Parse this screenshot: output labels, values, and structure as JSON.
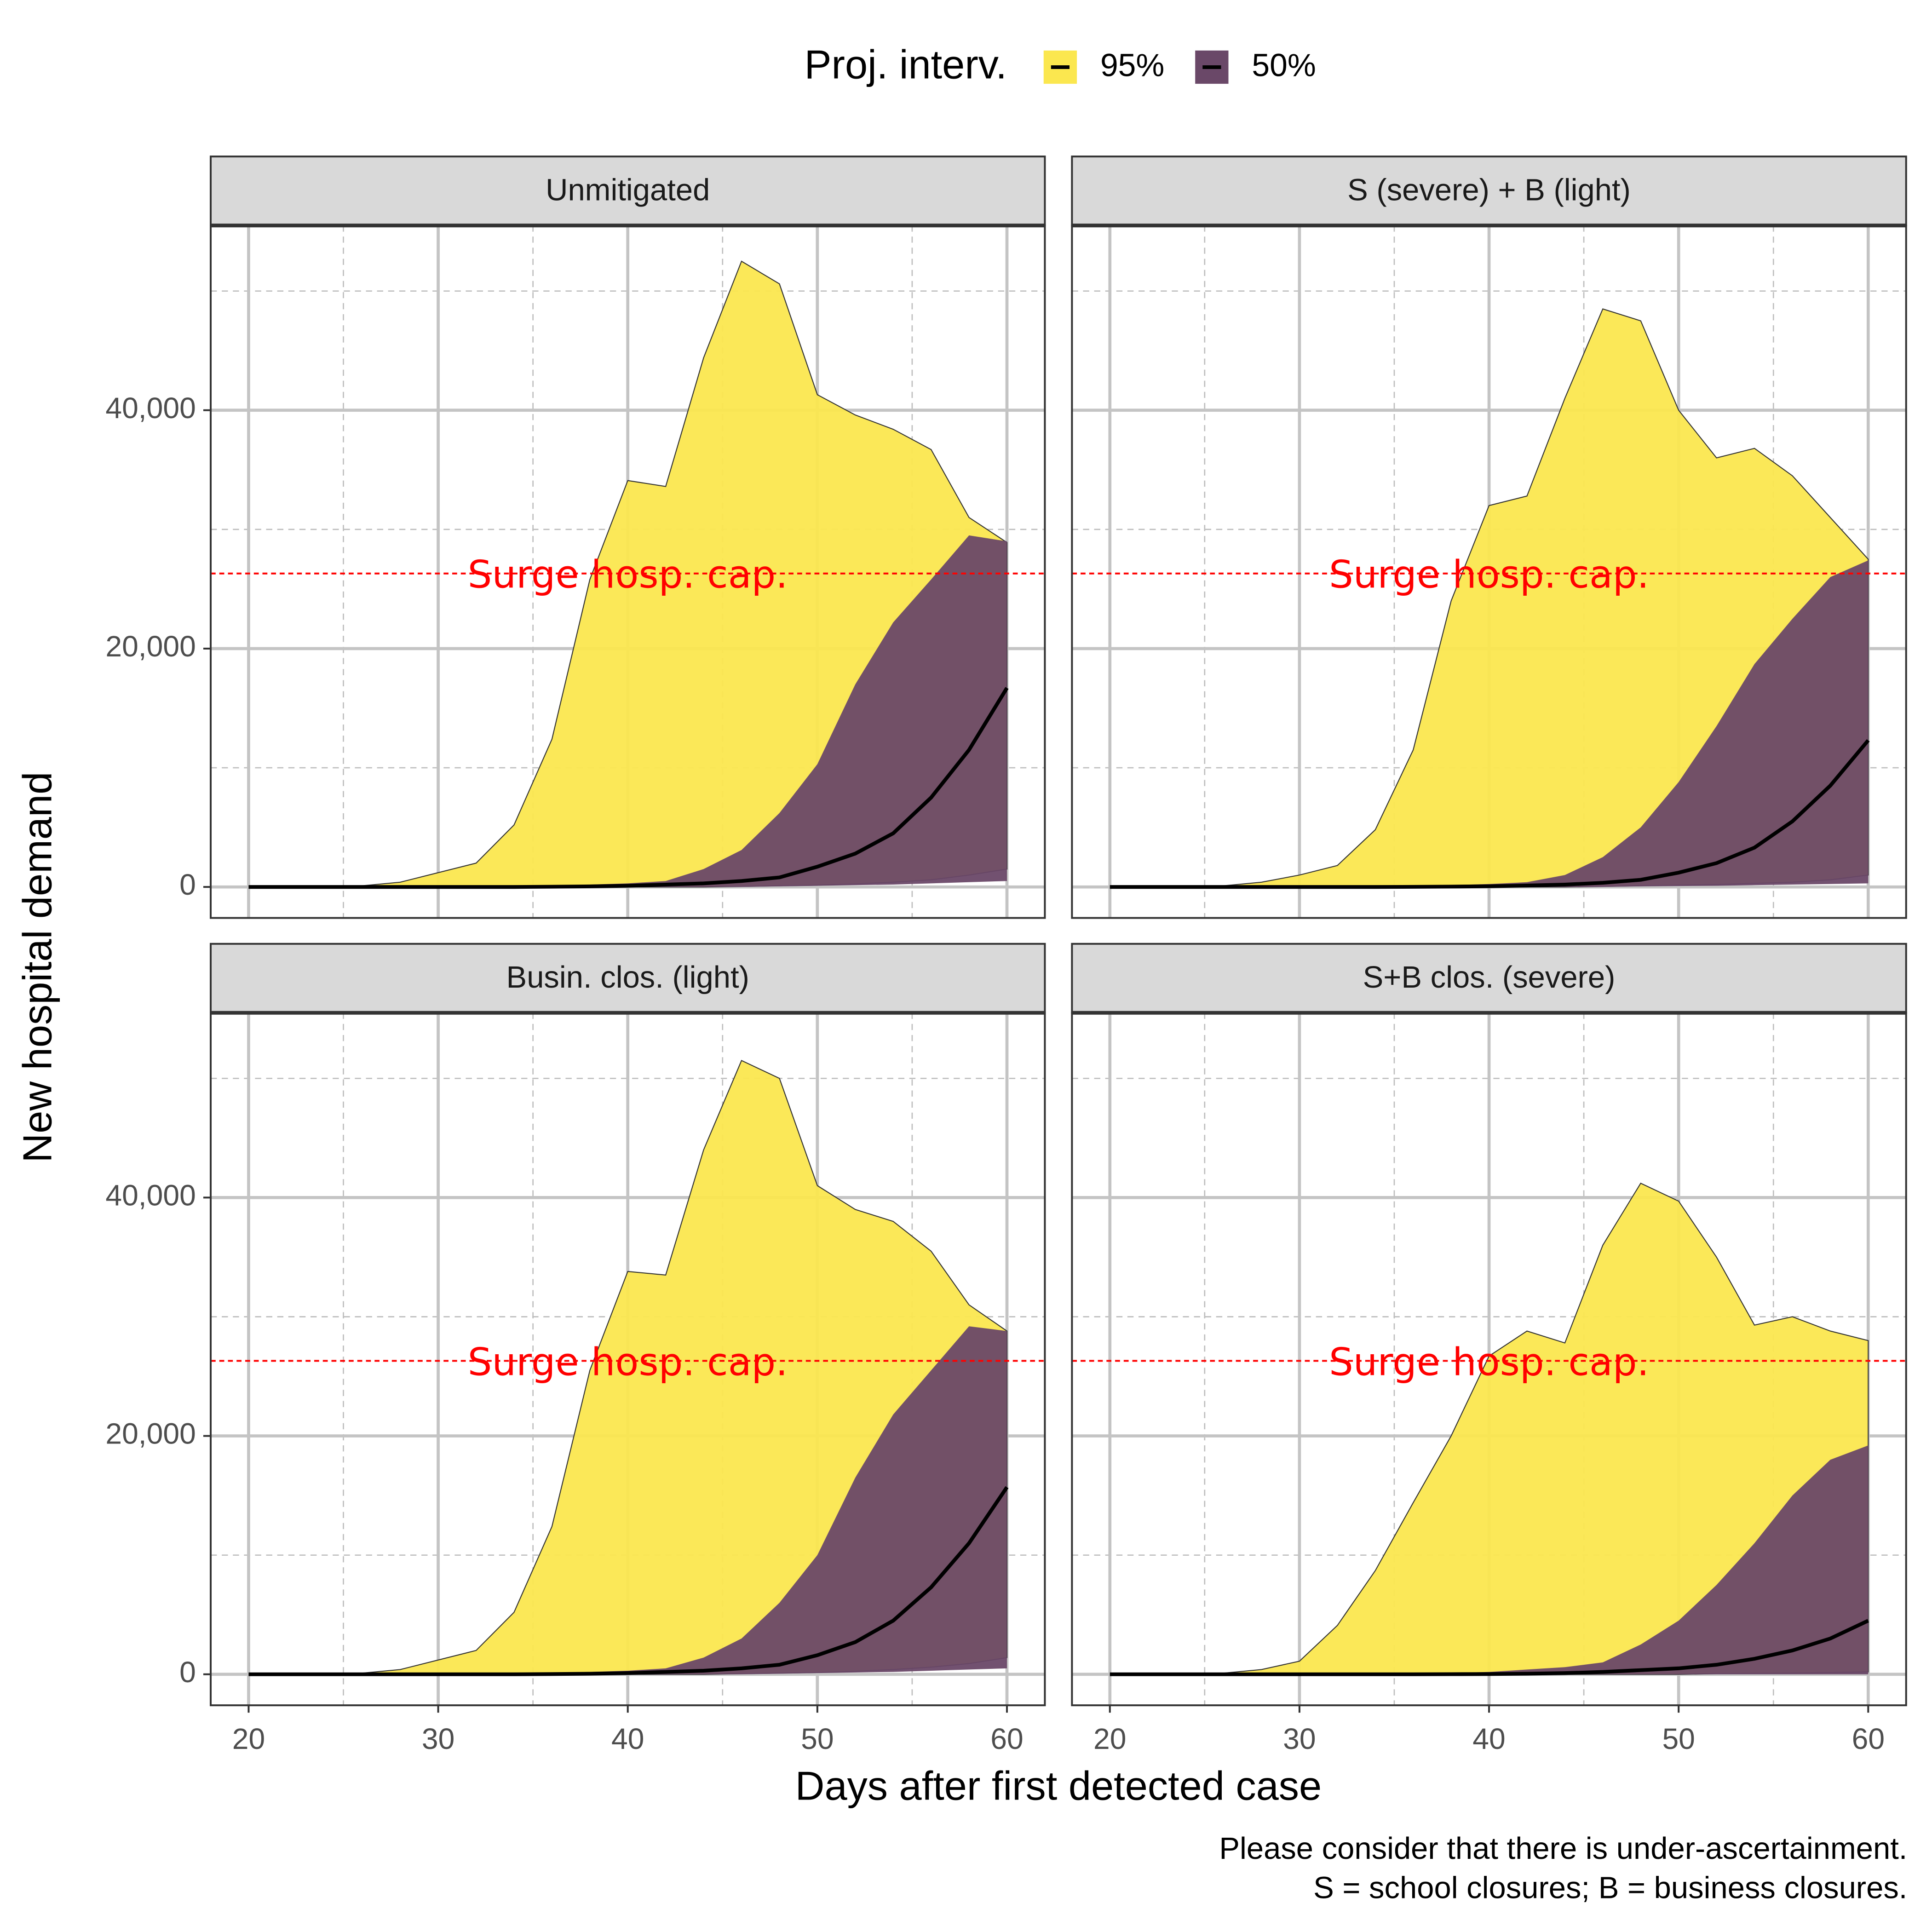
{
  "legend_title": "Proj. interv.",
  "x_label": "Days after first detected case",
  "y_label": "New hospital demand",
  "caption": [
    "Please consider that there is under-ascertainment.",
    "S = school closures; B = business closures."
  ],
  "chart_data": [
    {
      "type": "area",
      "title": "Unmitigated",
      "x": [
        20,
        22,
        24,
        26,
        28,
        30,
        32,
        34,
        36,
        38,
        40,
        42,
        44,
        46,
        48,
        50,
        52,
        54,
        56,
        58,
        60
      ],
      "series": [
        {
          "name": "95%",
          "color": "#fbe74f",
          "upper": [
            0,
            0,
            0,
            100,
            400,
            1200,
            2000,
            5200,
            12400,
            25800,
            34100,
            33600,
            44400,
            52500,
            50600,
            41300,
            39600,
            38400,
            36700,
            31000,
            28900
          ],
          "lower": [
            0,
            0,
            0,
            0,
            0,
            0,
            0,
            0,
            0,
            0,
            0,
            0,
            0,
            50,
            100,
            150,
            250,
            400,
            600,
            1000,
            1500
          ]
        },
        {
          "name": "50%",
          "color": "#6a4868",
          "upper": [
            0,
            0,
            0,
            0,
            0,
            0,
            0,
            50,
            100,
            200,
            300,
            500,
            1500,
            3100,
            6200,
            10300,
            17000,
            22200,
            25800,
            29500,
            29000
          ],
          "lower": [
            0,
            0,
            0,
            0,
            0,
            0,
            0,
            0,
            0,
            0,
            0,
            0,
            0,
            0,
            50,
            100,
            150,
            200,
            300,
            400,
            500
          ]
        }
      ],
      "median": [
        0,
        0,
        0,
        0,
        0,
        0,
        0,
        0,
        20,
        50,
        100,
        200,
        300,
        500,
        800,
        1700,
        2800,
        4500,
        7500,
        11500,
        16700
      ],
      "median_color": "#000000",
      "annotation": "Surge hosp. cap.",
      "hline": 26300,
      "hline_color": "#ff0000",
      "xlim": [
        18,
        62
      ],
      "ylim": [
        -2600,
        55500
      ],
      "xticks": [
        20,
        30,
        40,
        50,
        60
      ],
      "xminor": [
        25,
        35,
        45,
        55
      ],
      "yticks": [
        0,
        {
          "value": 20000,
          "label": "20,000"
        },
        {
          "value": 40000,
          "label": "40,000"
        }
      ],
      "yminor": [
        10000,
        30000,
        50000
      ]
    },
    {
      "type": "area",
      "title": "S (severe) + B (light)",
      "x": [
        20,
        22,
        24,
        26,
        28,
        30,
        32,
        34,
        36,
        38,
        40,
        42,
        44,
        46,
        48,
        50,
        52,
        54,
        56,
        58,
        60
      ],
      "series": [
        {
          "name": "95%",
          "color": "#fbe74f",
          "upper": [
            0,
            0,
            0,
            100,
            400,
            1000,
            1800,
            4800,
            11500,
            24000,
            32000,
            32800,
            41000,
            48500,
            47500,
            40000,
            36000,
            36800,
            34500,
            31000,
            27500
          ],
          "lower": [
            0,
            0,
            0,
            0,
            0,
            0,
            0,
            0,
            0,
            0,
            0,
            0,
            0,
            50,
            100,
            150,
            200,
            300,
            400,
            600,
            1000
          ]
        },
        {
          "name": "50%",
          "color": "#6a4868",
          "upper": [
            0,
            0,
            0,
            0,
            0,
            0,
            0,
            50,
            100,
            150,
            250,
            400,
            1000,
            2500,
            5000,
            8800,
            13500,
            18700,
            22500,
            26000,
            27400
          ],
          "lower": [
            0,
            0,
            0,
            0,
            0,
            0,
            0,
            0,
            0,
            0,
            0,
            0,
            0,
            0,
            50,
            80,
            100,
            150,
            200,
            250,
            300
          ]
        }
      ],
      "median": [
        0,
        0,
        0,
        0,
        0,
        0,
        0,
        0,
        10,
        30,
        60,
        120,
        200,
        350,
        600,
        1200,
        2000,
        3300,
        5500,
        8500,
        12300
      ],
      "median_color": "#000000",
      "annotation": "Surge hosp. cap.",
      "hline": 26300,
      "hline_color": "#ff0000",
      "xlim": [
        18,
        62
      ],
      "ylim": [
        -2600,
        55500
      ],
      "xticks": [
        20,
        30,
        40,
        50,
        60
      ],
      "xminor": [
        25,
        35,
        45,
        55
      ],
      "yticks": [
        0,
        {
          "value": 20000,
          "label": "20,000"
        },
        {
          "value": 40000,
          "label": "40,000"
        }
      ],
      "yminor": [
        10000,
        30000,
        50000
      ]
    },
    {
      "type": "area",
      "title": "Busin. clos. (light)",
      "x": [
        20,
        22,
        24,
        26,
        28,
        30,
        32,
        34,
        36,
        38,
        40,
        42,
        44,
        46,
        48,
        50,
        52,
        54,
        56,
        58,
        60
      ],
      "series": [
        {
          "name": "95%",
          "color": "#fbe74f",
          "upper": [
            0,
            0,
            0,
            100,
            400,
            1200,
            2000,
            5200,
            12400,
            25500,
            33800,
            33500,
            44000,
            51500,
            50000,
            41000,
            39000,
            38000,
            35500,
            31000,
            28800
          ],
          "lower": [
            0,
            0,
            0,
            0,
            0,
            0,
            0,
            0,
            0,
            0,
            0,
            0,
            0,
            50,
            100,
            150,
            250,
            400,
            600,
            900,
            1400
          ]
        },
        {
          "name": "50%",
          "color": "#6a4868",
          "upper": [
            0,
            0,
            0,
            0,
            0,
            0,
            0,
            50,
            100,
            200,
            300,
            500,
            1400,
            3000,
            6000,
            10000,
            16500,
            21800,
            25500,
            29200,
            28800
          ],
          "lower": [
            0,
            0,
            0,
            0,
            0,
            0,
            0,
            0,
            0,
            0,
            0,
            0,
            0,
            0,
            50,
            100,
            150,
            200,
            300,
            400,
            500
          ]
        },
        {
          "name": "",
          "color": ""
        }
      ],
      "median": [
        0,
        0,
        0,
        0,
        0,
        0,
        0,
        0,
        20,
        50,
        100,
        200,
        300,
        500,
        800,
        1600,
        2700,
        4500,
        7300,
        11000,
        15700
      ],
      "median_color": "#000000",
      "annotation": "Surge hosp. cap.",
      "hline": 26300,
      "hline_color": "#ff0000",
      "xlim": [
        18,
        62
      ],
      "ylim": [
        -2600,
        55500
      ],
      "xticks": [
        20,
        30,
        40,
        50,
        60
      ],
      "xminor": [
        25,
        35,
        45,
        55
      ],
      "yticks": [
        0,
        {
          "value": 20000,
          "label": "20,000"
        },
        {
          "value": 40000,
          "label": "40,000"
        }
      ],
      "yminor": [
        10000,
        30000,
        50000
      ]
    },
    {
      "type": "area",
      "title": "S+B clos. (severe)",
      "x": [
        20,
        22,
        24,
        26,
        28,
        30,
        32,
        34,
        36,
        38,
        40,
        42,
        44,
        46,
        48,
        50,
        52,
        54,
        56,
        58,
        60
      ],
      "series": [
        {
          "name": "95%",
          "color": "#fbe74f",
          "upper": [
            0,
            0,
            0,
            100,
            400,
            1100,
            4100,
            8700,
            14400,
            20000,
            26700,
            28800,
            27800,
            36000,
            41200,
            39700,
            35000,
            29300,
            30000,
            28800,
            28000
          ],
          "lower": [
            0,
            0,
            0,
            0,
            0,
            0,
            0,
            0,
            0,
            0,
            0,
            0,
            0,
            0,
            0,
            0,
            50,
            80,
            100,
            150,
            200
          ]
        },
        {
          "name": "50%",
          "color": "#6a4868",
          "upper": [
            0,
            0,
            0,
            0,
            0,
            0,
            0,
            0,
            50,
            100,
            200,
            400,
            600,
            1000,
            2500,
            4500,
            7500,
            11000,
            15000,
            18000,
            19200
          ],
          "lower": [
            0,
            0,
            0,
            0,
            0,
            0,
            0,
            0,
            0,
            0,
            0,
            0,
            0,
            0,
            0,
            0,
            0,
            0,
            0,
            0,
            0
          ]
        }
      ],
      "median": [
        0,
        0,
        0,
        0,
        0,
        0,
        0,
        0,
        0,
        10,
        20,
        50,
        100,
        200,
        350,
        500,
        800,
        1300,
        2000,
        3000,
        4500
      ],
      "median_color": "#000000",
      "annotation": "Surge hosp. cap.",
      "hline": 26300,
      "hline_color": "#ff0000",
      "xlim": [
        18,
        62
      ],
      "ylim": [
        -2600,
        55500
      ],
      "xticks": [
        20,
        30,
        40,
        50,
        60
      ],
      "xminor": [
        25,
        35,
        45,
        55
      ],
      "yticks": [
        0,
        {
          "value": 20000,
          "label": "20,000"
        },
        {
          "value": 40000,
          "label": "40,000"
        }
      ],
      "yminor": [
        10000,
        30000,
        50000
      ]
    }
  ]
}
